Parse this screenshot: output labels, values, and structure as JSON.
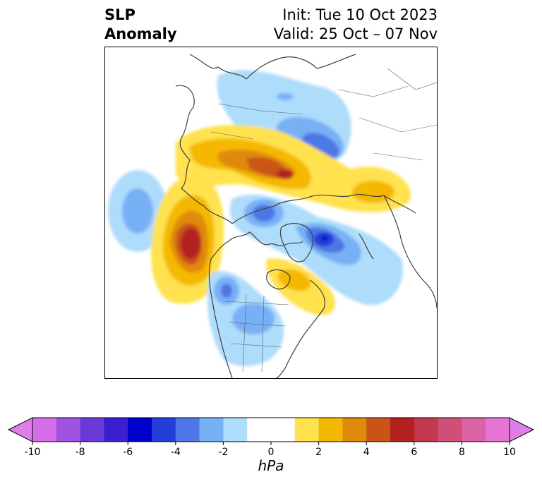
{
  "title": {
    "left_line1": "SLP",
    "left_line2": "Anomaly",
    "right_line1": "Init: Tue 10 Oct 2023",
    "right_line2": "Valid: 25 Oct – 07 Nov"
  },
  "colorbar": {
    "unit": "hPa",
    "tick_labels": [
      "-10",
      "-8",
      "-6",
      "-4",
      "-2",
      "0",
      "2",
      "4",
      "6",
      "8",
      "10"
    ],
    "levels": [
      -10,
      -9,
      -8,
      -7,
      -6,
      -5,
      -4,
      -3,
      -2,
      -1,
      1,
      2,
      3,
      4,
      5,
      6,
      7,
      8,
      9,
      10
    ],
    "colors": [
      "#d56ee8",
      "#a052e0",
      "#6a3ad9",
      "#3a1fd0",
      "#0000cc",
      "#233fd8",
      "#4e76e6",
      "#78b0f5",
      "#aedcfb",
      "#ffffff",
      "#ffe24d",
      "#f5b800",
      "#e08a0c",
      "#c95418",
      "#b22020",
      "#c0394c",
      "#cf4f78",
      "#d963a4",
      "#e775d4"
    ],
    "under_color": "#e07ee8",
    "over_color": "#e07ee8"
  },
  "map": {
    "projection": "north-polar-stereographic",
    "variable": "SLP anomaly",
    "anomaly_centers": [
      {
        "region": "Gulf of Alaska",
        "sign": "positive",
        "peak_hpa": 6
      },
      {
        "region": "Central Siberia / Kara coast",
        "sign": "positive",
        "peak_hpa": 5
      },
      {
        "region": "Scandinavia / Barents",
        "sign": "positive",
        "peak_hpa": 2
      },
      {
        "region": "Hudson Bay / Labrador",
        "sign": "positive",
        "peak_hpa": 3
      },
      {
        "region": "Greenland / Iceland",
        "sign": "negative",
        "peak_hpa": -6
      },
      {
        "region": "Central Asia",
        "sign": "negative",
        "peak_hpa": -4
      },
      {
        "region": "Western North America",
        "sign": "negative",
        "peak_hpa": -4
      },
      {
        "region": "Arctic Ocean (E. Siberian side)",
        "sign": "negative",
        "peak_hpa": -4
      },
      {
        "region": "North Pacific west",
        "sign": "negative",
        "peak_hpa": -2
      }
    ]
  }
}
